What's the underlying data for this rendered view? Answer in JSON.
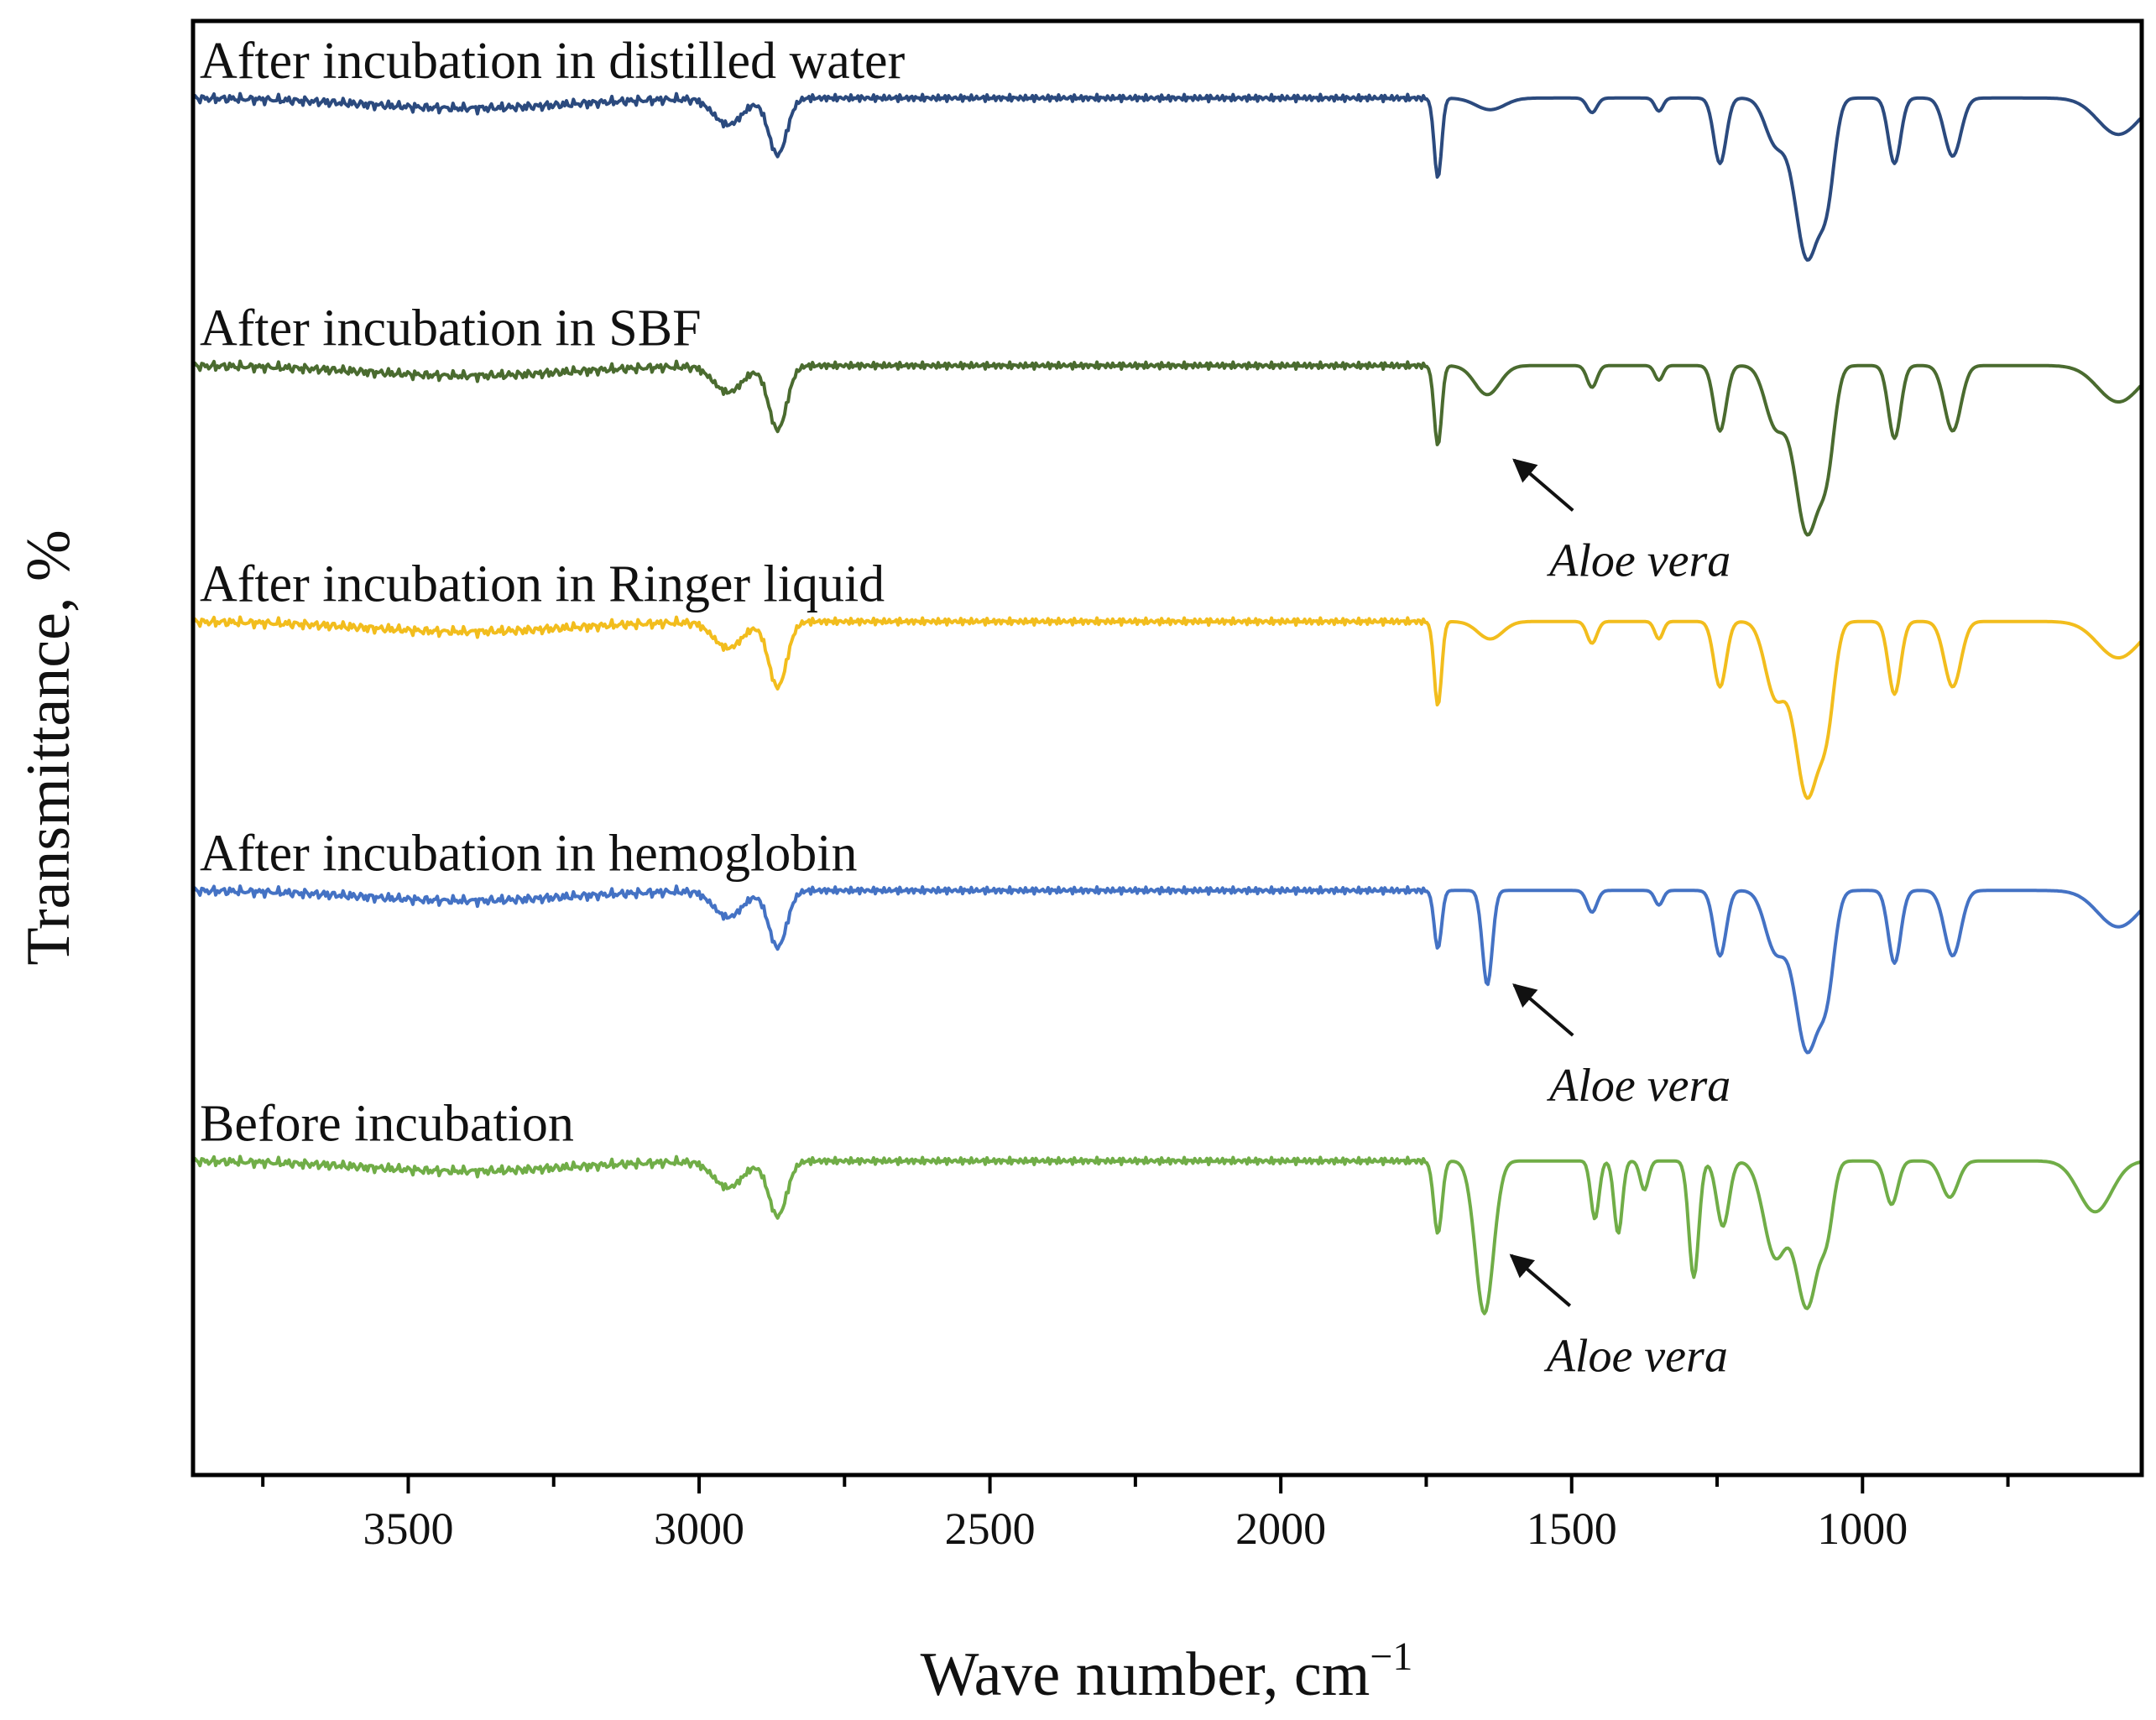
{
  "chart_data": {
    "type": "line",
    "title": "",
    "xlabel": "Wave number, cm",
    "xlabel_sup": "−1",
    "ylabel": "Transmittance, %",
    "xlim": [
      3870,
      520
    ],
    "x_inverted": true,
    "ylim": [
      0,
      100
    ],
    "grid": false,
    "legend": "inline labels above each curve",
    "x_ticks": [
      3500,
      3000,
      2500,
      2000,
      1500,
      1000
    ],
    "x_tick_labels": [
      "3500",
      "3000",
      "2500",
      "2000",
      "1500",
      "1000"
    ],
    "x_minor_ticks": [
      3750,
      3250,
      2750,
      2250,
      1750,
      1250,
      750
    ],
    "series": [
      {
        "name": "After incubation in distilled water",
        "color": "#2b4a7e",
        "baseline": 94.7,
        "peaks": [
          {
            "x": 2950,
            "depth": 1.8,
            "width": 35
          },
          {
            "x": 2865,
            "depth": 3.9,
            "width": 22
          },
          {
            "x": 1730,
            "depth": 5.5,
            "width": 9
          },
          {
            "x": 1640,
            "depth": 0.8,
            "width": 35
          },
          {
            "x": 1465,
            "depth": 1.0,
            "width": 12
          },
          {
            "x": 1350,
            "depth": 0.9,
            "width": 10
          },
          {
            "x": 1245,
            "depth": 4.5,
            "width": 15
          },
          {
            "x": 1150,
            "depth": 3.0,
            "width": 25
          },
          {
            "x": 1095,
            "depth": 11.0,
            "width": 30
          },
          {
            "x": 1060,
            "depth": 5.0,
            "width": 18
          },
          {
            "x": 945,
            "depth": 4.5,
            "width": 15
          },
          {
            "x": 845,
            "depth": 4.0,
            "width": 20
          },
          {
            "x": 560,
            "depth": 2.5,
            "width": 50
          }
        ]
      },
      {
        "name": "After incubation in SBF",
        "color": "#4a6b2f",
        "baseline": 76.3,
        "peaks": [
          {
            "x": 2950,
            "depth": 1.8,
            "width": 35
          },
          {
            "x": 2865,
            "depth": 4.4,
            "width": 22
          },
          {
            "x": 1730,
            "depth": 5.5,
            "width": 9
          },
          {
            "x": 1645,
            "depth": 2.0,
            "width": 30
          },
          {
            "x": 1465,
            "depth": 1.5,
            "width": 12
          },
          {
            "x": 1350,
            "depth": 1.0,
            "width": 10
          },
          {
            "x": 1245,
            "depth": 4.5,
            "width": 15
          },
          {
            "x": 1150,
            "depth": 4.0,
            "width": 25
          },
          {
            "x": 1095,
            "depth": 11.5,
            "width": 30
          },
          {
            "x": 1060,
            "depth": 5.0,
            "width": 18
          },
          {
            "x": 945,
            "depth": 5.0,
            "width": 15
          },
          {
            "x": 845,
            "depth": 4.5,
            "width": 20
          },
          {
            "x": 560,
            "depth": 2.5,
            "width": 50
          }
        ]
      },
      {
        "name": "After incubation in Ringer liquid",
        "color": "#f2bd1d",
        "baseline": 58.7,
        "peaks": [
          {
            "x": 2950,
            "depth": 1.8,
            "width": 35
          },
          {
            "x": 2865,
            "depth": 4.5,
            "width": 22
          },
          {
            "x": 1730,
            "depth": 5.8,
            "width": 9
          },
          {
            "x": 1640,
            "depth": 1.2,
            "width": 30
          },
          {
            "x": 1465,
            "depth": 1.5,
            "width": 12
          },
          {
            "x": 1350,
            "depth": 1.2,
            "width": 10
          },
          {
            "x": 1245,
            "depth": 4.5,
            "width": 15
          },
          {
            "x": 1150,
            "depth": 5.0,
            "width": 25
          },
          {
            "x": 1095,
            "depth": 12.0,
            "width": 30
          },
          {
            "x": 1060,
            "depth": 5.0,
            "width": 18
          },
          {
            "x": 945,
            "depth": 5.0,
            "width": 15
          },
          {
            "x": 845,
            "depth": 4.5,
            "width": 20
          },
          {
            "x": 560,
            "depth": 2.5,
            "width": 50
          }
        ]
      },
      {
        "name": "After incubation in hemoglobin",
        "color": "#4472c4",
        "baseline": 40.2,
        "peaks": [
          {
            "x": 2950,
            "depth": 1.8,
            "width": 35
          },
          {
            "x": 2865,
            "depth": 3.9,
            "width": 22
          },
          {
            "x": 1730,
            "depth": 4.0,
            "width": 9
          },
          {
            "x": 1645,
            "depth": 6.5,
            "width": 12
          },
          {
            "x": 1465,
            "depth": 1.5,
            "width": 12
          },
          {
            "x": 1350,
            "depth": 1.0,
            "width": 10
          },
          {
            "x": 1245,
            "depth": 4.5,
            "width": 15
          },
          {
            "x": 1150,
            "depth": 4.0,
            "width": 25
          },
          {
            "x": 1095,
            "depth": 11.0,
            "width": 30
          },
          {
            "x": 1060,
            "depth": 5.0,
            "width": 18
          },
          {
            "x": 945,
            "depth": 5.0,
            "width": 15
          },
          {
            "x": 845,
            "depth": 4.5,
            "width": 20
          },
          {
            "x": 560,
            "depth": 2.5,
            "width": 50
          }
        ]
      },
      {
        "name": "Before incubation",
        "color": "#70ad47",
        "baseline": 21.6,
        "peaks": [
          {
            "x": 2950,
            "depth": 1.8,
            "width": 35
          },
          {
            "x": 2865,
            "depth": 3.8,
            "width": 22
          },
          {
            "x": 1730,
            "depth": 5.0,
            "width": 10
          },
          {
            "x": 1650,
            "depth": 10.5,
            "width": 22
          },
          {
            "x": 1460,
            "depth": 4.0,
            "width": 10
          },
          {
            "x": 1420,
            "depth": 5.0,
            "width": 10
          },
          {
            "x": 1375,
            "depth": 2.0,
            "width": 10
          },
          {
            "x": 1290,
            "depth": 8.0,
            "width": 12
          },
          {
            "x": 1240,
            "depth": 4.5,
            "width": 15
          },
          {
            "x": 1150,
            "depth": 6.5,
            "width": 28
          },
          {
            "x": 1095,
            "depth": 10.0,
            "width": 28
          },
          {
            "x": 1060,
            "depth": 3.5,
            "width": 15
          },
          {
            "x": 950,
            "depth": 3.0,
            "width": 15
          },
          {
            "x": 850,
            "depth": 2.5,
            "width": 20
          },
          {
            "x": 600,
            "depth": 3.5,
            "width": 40
          }
        ]
      }
    ],
    "annotations": [
      {
        "text": "Aloe vera",
        "series": "After incubation in SBF",
        "arrow_to_x": 1645
      },
      {
        "text": "Aloe vera",
        "series": "After incubation in hemoglobin",
        "arrow_to_x": 1645
      },
      {
        "text": "Aloe vera",
        "series": "Before incubation",
        "arrow_to_x": 1650
      }
    ]
  }
}
